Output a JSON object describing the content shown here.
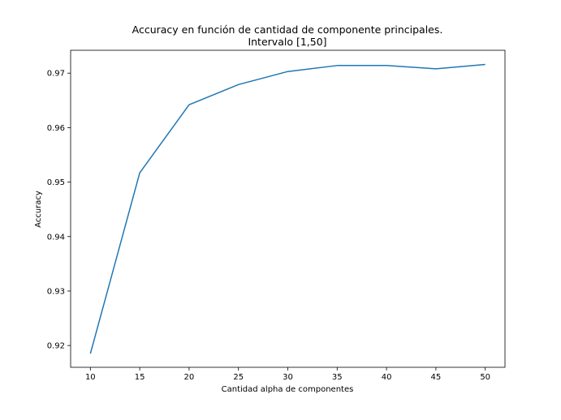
{
  "chart_data": {
    "type": "line",
    "title_line1": "Accuracy en función de cantidad de componente principales.",
    "title_line2": "Intervalo [1,50]",
    "xlabel": "Cantidad alpha de componentes",
    "ylabel": "Accuracy",
    "x": [
      10,
      15,
      20,
      25,
      30,
      35,
      40,
      45,
      50
    ],
    "series": [
      {
        "values": [
          0.9185,
          0.9517,
          0.9642,
          0.9679,
          0.9703,
          0.9714,
          0.9714,
          0.9708,
          0.9716
        ],
        "color": "#1f77b4"
      }
    ],
    "xlim": [
      8,
      52
    ],
    "ylim": [
      0.916,
      0.9742
    ],
    "xticks": [
      10,
      15,
      20,
      25,
      30,
      35,
      40,
      45,
      50
    ],
    "yticks": [
      0.92,
      0.93,
      0.94,
      0.95,
      0.96,
      0.97
    ],
    "ytick_labels": [
      "0.92",
      "0.93",
      "0.94",
      "0.95",
      "0.96",
      "0.97"
    ],
    "grid": false,
    "legend": "none"
  }
}
